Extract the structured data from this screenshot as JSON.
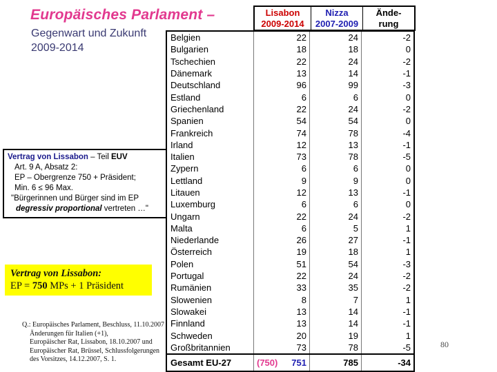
{
  "slide": {
    "title": "Europäisches Parlament –",
    "subtitle_line1": "Gegenwart und Zukunft",
    "subtitle_line2": "2009-2014",
    "page_number": "80"
  },
  "colors": {
    "title_pink": "#E2398F",
    "subtitle_blue": "#3A3A72",
    "lisbon_red": "#CC0000",
    "nizza_blue": "#2020B2",
    "info_heading_blue": "#1A1A8C",
    "yellow_bg": "#FFFF00"
  },
  "info_box": {
    "heading_blue": "Vertrag von Lissabon",
    "heading_mid": " – Teil ",
    "heading_bold": "EUV",
    "line2": "Art. 9 A, Absatz 2:",
    "line3": "EP – Obergrenze 750 + Präsident;",
    "line4": "Min. 6 ≤ 96 Max.",
    "line5": "\"Bürgerinnen und Bürger sind im EP",
    "line6_bold": "degressiv proportional",
    "line6_rest": " vertreten …\""
  },
  "yellow_box": {
    "line1": "Vertrag von Lissabon:",
    "line2_prefix": "EP = ",
    "line2_bold": "750",
    "line2_suffix": " MPs + 1 Präsident"
  },
  "source_note": {
    "line1": "Q.: Europäisches Parlament, Beschluss, 11.10.2007",
    "line2": "Änderungen für Italien (+1),",
    "line3": "Europäischer Rat, Lissabon, 18.10.2007 und",
    "line4": "Europäischer Rat, Brüssel, Schlussfolgerungen",
    "line5": "des Vorsitzes, 14.12.2007, S. 1."
  },
  "table": {
    "header": {
      "lisbon1": "Lisabon",
      "lisbon2": "2009-2014",
      "nizza1": "Nizza",
      "nizza2": "2007-2009",
      "change1": "Ände-",
      "change2": "rung"
    },
    "rows": [
      {
        "country": "Belgien",
        "lisbon": 22,
        "nizza": 24,
        "change": -2
      },
      {
        "country": "Bulgarien",
        "lisbon": 18,
        "nizza": 18,
        "change": 0
      },
      {
        "country": "Tschechien",
        "lisbon": 22,
        "nizza": 24,
        "change": -2
      },
      {
        "country": "Dänemark",
        "lisbon": 13,
        "nizza": 14,
        "change": -1
      },
      {
        "country": "Deutschland",
        "lisbon": 96,
        "nizza": 99,
        "change": -3
      },
      {
        "country": "Estland",
        "lisbon": 6,
        "nizza": 6,
        "change": 0
      },
      {
        "country": "Griechenland",
        "lisbon": 22,
        "nizza": 24,
        "change": -2
      },
      {
        "country": "Spanien",
        "lisbon": 54,
        "nizza": 54,
        "change": 0
      },
      {
        "country": "Frankreich",
        "lisbon": 74,
        "nizza": 78,
        "change": -4
      },
      {
        "country": "Irland",
        "lisbon": 12,
        "nizza": 13,
        "change": -1
      },
      {
        "country": "Italien",
        "lisbon": 73,
        "nizza": 78,
        "change": -5
      },
      {
        "country": "Zypern",
        "lisbon": 6,
        "nizza": 6,
        "change": 0
      },
      {
        "country": "Lettland",
        "lisbon": 9,
        "nizza": 9,
        "change": 0
      },
      {
        "country": "Litauen",
        "lisbon": 12,
        "nizza": 13,
        "change": -1
      },
      {
        "country": "Luxemburg",
        "lisbon": 6,
        "nizza": 6,
        "change": 0
      },
      {
        "country": "Ungarn",
        "lisbon": 22,
        "nizza": 24,
        "change": -2
      },
      {
        "country": "Malta",
        "lisbon": 6,
        "nizza": 5,
        "change": 1
      },
      {
        "country": "Niederlande",
        "lisbon": 26,
        "nizza": 27,
        "change": -1
      },
      {
        "country": "Österreich",
        "lisbon": 19,
        "nizza": 18,
        "change": 1
      },
      {
        "country": "Polen",
        "lisbon": 51,
        "nizza": 54,
        "change": -3
      },
      {
        "country": "Portugal",
        "lisbon": 22,
        "nizza": 24,
        "change": -2
      },
      {
        "country": "Rumänien",
        "lisbon": 33,
        "nizza": 35,
        "change": -2
      },
      {
        "country": "Slowenien",
        "lisbon": 8,
        "nizza": 7,
        "change": 1
      },
      {
        "country": "Slowakei",
        "lisbon": 13,
        "nizza": 14,
        "change": -1
      },
      {
        "country": "Finnland",
        "lisbon": 13,
        "nizza": 14,
        "change": -1
      },
      {
        "country": "Schweden",
        "lisbon": 20,
        "nizza": 19,
        "change": 1
      },
      {
        "country": "Großbritannien",
        "lisbon": 73,
        "nizza": 78,
        "change": -5
      }
    ],
    "total": {
      "label": "Gesamt EU-27",
      "lisbon_note": "(750)",
      "lisbon": "751",
      "nizza": "785",
      "change": "-34"
    }
  }
}
